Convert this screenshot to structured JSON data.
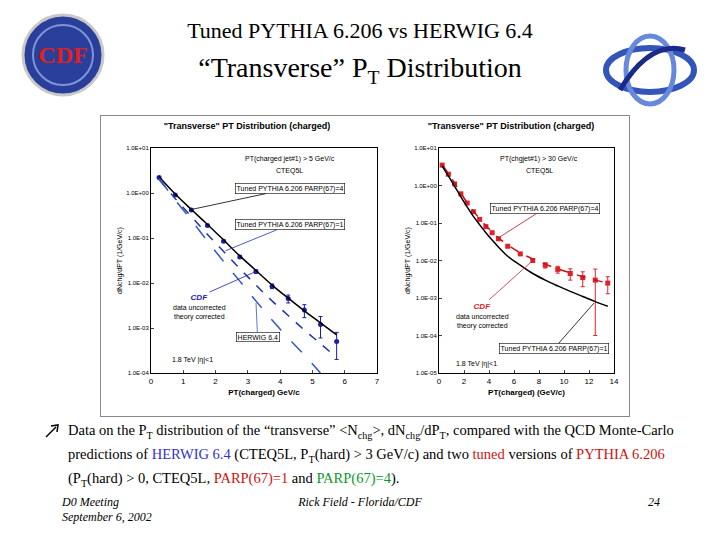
{
  "header": {
    "logo": "CDF",
    "title": "Tuned PYTHIA 6.206 vs HERWIG 6.4",
    "subtitle": [
      {
        "text": "“Transverse” P"
      },
      {
        "text": "T",
        "sub": true
      },
      {
        "text": " Distribution"
      }
    ]
  },
  "chart_data": [
    {
      "type": "line",
      "title": "\"Transverse\" PT Distribution (charged)",
      "x_label": "PT(charged) GeV/c",
      "y_label": "dNchg/dPT (1/GeV/c)",
      "log": "y",
      "grid": false,
      "xlim": [
        0,
        7
      ],
      "xticks": [
        0,
        1,
        2,
        3,
        4,
        5,
        6,
        7
      ],
      "ylim": [
        0.0001,
        10
      ],
      "yticks": [
        {
          "value": 10,
          "label": "1.0E+01"
        },
        {
          "value": 1,
          "label": "1.0E+00"
        },
        {
          "value": 0.1,
          "label": "1.0E-01"
        },
        {
          "value": 0.01,
          "label": "1.0E-02"
        },
        {
          "value": 0.001,
          "label": "1.0E-03"
        },
        {
          "value": 0.0001,
          "label": "1.0E-04"
        }
      ],
      "annotations": [
        "PT(charged jet#1) > 5 GeV/c",
        "CTEQ5L",
        "data uncorrected",
        "theory corrected",
        "1.8 TeV |η|<1"
      ],
      "series": [
        {
          "name": "CDF",
          "type": "scatter",
          "marker": "circle",
          "color": "#1c1ca8",
          "x": [
            0.25,
            0.75,
            1.25,
            1.75,
            2.25,
            2.75,
            3.25,
            3.75,
            4.25,
            4.75,
            5.25,
            5.75
          ],
          "values": [
            2.2,
            0.9,
            0.42,
            0.19,
            0.085,
            0.038,
            0.018,
            0.0085,
            0.0045,
            0.0025,
            0.0012,
            0.0005
          ],
          "errors": [
            0.1,
            0.04,
            0.02,
            0.01,
            0.005,
            0.003,
            0.0015,
            0.001,
            0.0009,
            0.0008,
            0.0006,
            0.0003
          ]
        },
        {
          "name": "Tuned PYTHIA 6.206 PARP(67)=4",
          "type": "line",
          "line_style": "solid",
          "color": "#000000",
          "x": [
            0.25,
            0.75,
            1.25,
            1.75,
            2.25,
            2.75,
            3.25,
            3.75,
            4.25,
            4.75,
            5.25,
            5.75
          ],
          "values": [
            2.3,
            0.95,
            0.43,
            0.2,
            0.09,
            0.04,
            0.019,
            0.009,
            0.0046,
            0.0024,
            0.0013,
            0.0007
          ]
        },
        {
          "name": "Tuned PYTHIA 6.206 PARP(67)=1",
          "type": "line",
          "line_style": "dash",
          "color": "#2233aa",
          "x": [
            0.25,
            0.75,
            1.25,
            1.75,
            2.25,
            2.75,
            3.25,
            3.75,
            4.25,
            4.75,
            5.25,
            5.75
          ],
          "values": [
            2.0,
            0.75,
            0.3,
            0.12,
            0.05,
            0.021,
            0.009,
            0.004,
            0.0019,
            0.0009,
            0.00045,
            0.00022
          ]
        },
        {
          "name": "HERWIG 6.4",
          "type": "line",
          "line_style": "longdash",
          "color": "#3355cc",
          "x": [
            0.25,
            0.75,
            1.25,
            1.75,
            2.25,
            2.75,
            3.25,
            3.75,
            4.25,
            4.75,
            5.25,
            5.75
          ],
          "values": [
            2.1,
            0.7,
            0.25,
            0.085,
            0.03,
            0.011,
            0.004,
            0.0015,
            0.0006,
            0.00025,
            0.0001,
            null
          ]
        }
      ]
    },
    {
      "type": "line",
      "title": "\"Transverse\" PT Distribution (charged)",
      "x_label": "PT(charged) (GeV/c)",
      "y_label": "dNchg/dPT (1/GeV/c)",
      "log": "y",
      "grid": false,
      "xlim": [
        0,
        14
      ],
      "xticks": [
        0,
        2,
        4,
        6,
        8,
        10,
        12,
        14
      ],
      "ylim": [
        1e-05,
        10
      ],
      "yticks": [
        {
          "value": 10,
          "label": "1.0E+01"
        },
        {
          "value": 1,
          "label": "1.0E+00"
        },
        {
          "value": 0.1,
          "label": "1.0E-01"
        },
        {
          "value": 0.01,
          "label": "1.0E-02"
        },
        {
          "value": 0.001,
          "label": "1.0E-03"
        },
        {
          "value": 0.0001,
          "label": "1.0E-04"
        },
        {
          "value": 1e-05,
          "label": "1.0E-05"
        }
      ],
      "annotations": [
        "PT(chgjet#1) > 30 GeV/c",
        "CTEQ5L",
        "data uncorrected",
        "theory corrected",
        "1.8 TeV |η|<1"
      ],
      "series": [
        {
          "name": "CDF",
          "type": "scatter",
          "marker": "square",
          "color": "#e0202a",
          "x": [
            0.25,
            0.75,
            1.25,
            1.75,
            2.25,
            2.75,
            3.25,
            3.75,
            4.25,
            4.75,
            5.5,
            6.5,
            7.5,
            8.5,
            9.5,
            10.5,
            11.5,
            12.5,
            13.5
          ],
          "values": [
            3.5,
            2.0,
            1.1,
            0.6,
            0.34,
            0.2,
            0.125,
            0.08,
            0.055,
            0.038,
            0.024,
            0.015,
            0.01,
            0.0075,
            0.0058,
            0.0045,
            0.0035,
            0.003,
            0.0025
          ],
          "errors": [
            0.1,
            0.06,
            0.03,
            0.02,
            0.012,
            0.008,
            0.005,
            0.004,
            0.003,
            0.002,
            0.0015,
            0.0012,
            0.001,
            0.0012,
            0.0012,
            0.0015,
            0.0015,
            0.0029,
            0.0012
          ]
        },
        {
          "name": "Tuned PYTHIA 6.206 PARP(67)=4",
          "type": "line",
          "line_style": "dash",
          "color": "#c0141e",
          "x": [
            0.25,
            0.75,
            1.25,
            1.75,
            2.25,
            2.75,
            3.25,
            3.75,
            4.25,
            4.75,
            5.5,
            6.5,
            7.5,
            8.5,
            9.5,
            10.5,
            11.5,
            12.5,
            13.5
          ],
          "values": [
            3.6,
            2.1,
            1.15,
            0.62,
            0.35,
            0.21,
            0.13,
            0.085,
            0.058,
            0.04,
            0.026,
            0.016,
            0.011,
            0.008,
            0.006,
            0.0047,
            0.0037,
            0.003,
            0.0025
          ]
        },
        {
          "name": "Tuned PYTHIA 6.206 PARP(67)=1",
          "type": "line",
          "line_style": "solid",
          "color": "#000000",
          "x": [
            0.25,
            0.75,
            1.25,
            1.75,
            2.25,
            2.75,
            3.25,
            3.75,
            4.25,
            4.75,
            5.5,
            6.5,
            7.5,
            8.5,
            9.5,
            10.5,
            11.5,
            12.5,
            13.5
          ],
          "values": [
            3.3,
            1.8,
            0.95,
            0.5,
            0.27,
            0.15,
            0.09,
            0.055,
            0.035,
            0.023,
            0.013,
            0.0075,
            0.0045,
            0.003,
            0.0021,
            0.0015,
            0.0011,
            0.0008,
            0.0006
          ]
        }
      ]
    }
  ],
  "caption": [
    {
      "text": "Data on the P"
    },
    {
      "text": "T",
      "sub": true
    },
    {
      "text": " distribution of the “transverse” <N"
    },
    {
      "text": "chg",
      "sub": true
    },
    {
      "text": ">, dN"
    },
    {
      "text": "chg",
      "sub": true
    },
    {
      "text": "/dP"
    },
    {
      "text": "T",
      "sub": true
    },
    {
      "text": ", compared with the QCD Monte-Carlo predictions of "
    },
    {
      "text": "HERWIG 6.4",
      "color": "#3333cc"
    },
    {
      "text": " (CTEQ5L, P"
    },
    {
      "text": "T",
      "sub": true
    },
    {
      "text": "(hard) > 3 GeV/c) and two "
    },
    {
      "text": "tuned",
      "color": "#d01010"
    },
    {
      "text": " versions of "
    },
    {
      "text": "PYTHIA 6.206",
      "color": "#d01010"
    },
    {
      "text": "  (P"
    },
    {
      "text": "T",
      "sub": true
    },
    {
      "text": "(hard) > 0, CTEQ5L, "
    },
    {
      "text": "PARP(67)=1",
      "color": "#d01010"
    },
    {
      "text": " and "
    },
    {
      "text": "PARP(67)=4",
      "color": "#0a9a2a"
    },
    {
      "text": ")."
    }
  ],
  "footer": {
    "left": [
      "D0 Meeting",
      "September 6, 2002"
    ],
    "center": "Rick Field - Florida/CDF",
    "page": 24
  }
}
